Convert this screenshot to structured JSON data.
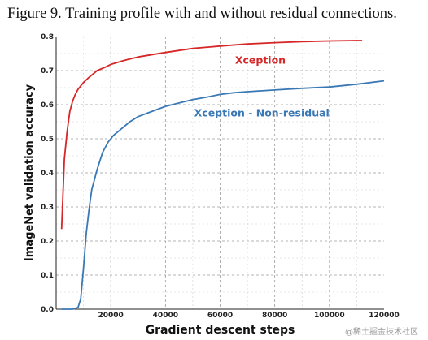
{
  "caption": "Figure 9. Training profile with and without residual connections.",
  "watermark": "@稀土掘金技术社区",
  "chart_data": {
    "type": "line",
    "xlabel": "Gradient descent steps",
    "ylabel": "ImageNet validation accuracy",
    "xlim": [
      0,
      120000
    ],
    "ylim": [
      0.0,
      0.8
    ],
    "xticks": [
      20000,
      40000,
      60000,
      80000,
      100000,
      120000
    ],
    "xtick_labels": [
      "20000",
      "40000",
      "60000",
      "80000",
      "100000",
      "120000"
    ],
    "yticks": [
      0.0,
      0.1,
      0.2,
      0.3,
      0.4,
      0.5,
      0.6,
      0.7,
      0.8
    ],
    "ytick_labels": [
      "0.0",
      "0.1",
      "0.2",
      "0.3",
      "0.4",
      "0.5",
      "0.6",
      "0.7",
      "0.8"
    ],
    "grid": true,
    "series": [
      {
        "name": "Xception",
        "color": "#d62728",
        "x": [
          2000,
          3000,
          4000,
          5000,
          6000,
          7000,
          8000,
          10000,
          12000,
          15000,
          18000,
          20000,
          25000,
          30000,
          40000,
          50000,
          60000,
          70000,
          80000,
          90000,
          100000,
          110000,
          112000
        ],
        "y": [
          0.235,
          0.44,
          0.52,
          0.58,
          0.61,
          0.63,
          0.645,
          0.665,
          0.68,
          0.7,
          0.71,
          0.718,
          0.73,
          0.74,
          0.753,
          0.765,
          0.772,
          0.778,
          0.782,
          0.785,
          0.787,
          0.788,
          0.788
        ]
      },
      {
        "name": "Xception - Non-residual",
        "color": "#3a78b5",
        "x": [
          2000,
          6000,
          8000,
          9000,
          10000,
          11000,
          12000,
          13000,
          15000,
          17000,
          19000,
          21000,
          24000,
          27000,
          30000,
          35000,
          40000,
          45000,
          50000,
          55000,
          60000,
          65000,
          70000,
          80000,
          90000,
          100000,
          110000,
          120000
        ],
        "y": [
          0.0,
          0.0,
          0.005,
          0.03,
          0.12,
          0.22,
          0.29,
          0.35,
          0.41,
          0.46,
          0.49,
          0.51,
          0.53,
          0.55,
          0.565,
          0.58,
          0.595,
          0.605,
          0.615,
          0.622,
          0.63,
          0.635,
          0.638,
          0.643,
          0.648,
          0.652,
          0.66,
          0.67
        ]
      }
    ],
    "annotations": [
      {
        "text": "Xception",
        "series": 0
      },
      {
        "text": "Xception - Non-residual",
        "series": 1
      }
    ]
  }
}
